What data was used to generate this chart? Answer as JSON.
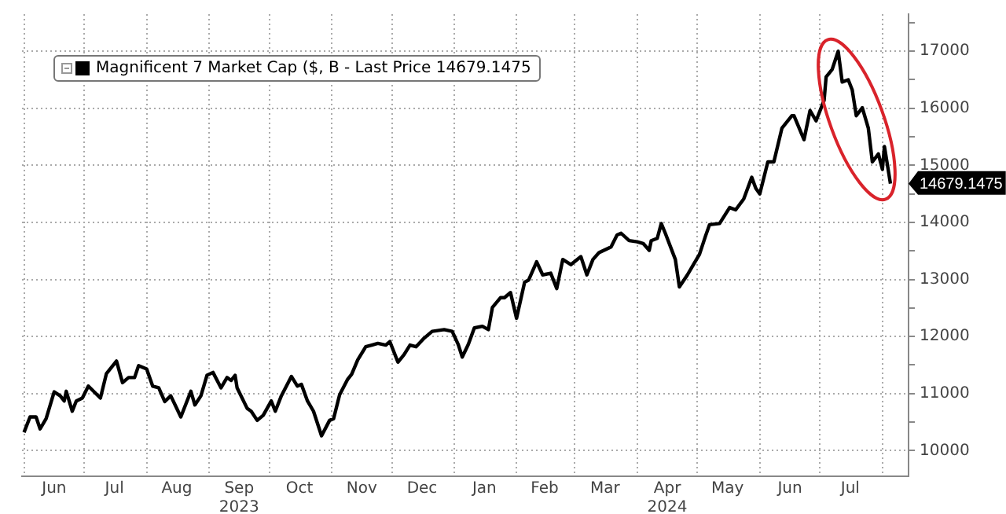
{
  "chart_data": {
    "type": "line",
    "legend": "top left",
    "grid": true,
    "marker": "none",
    "line_style": "solid",
    "series": [
      {
        "name": "Magnificent 7 Market Cap ($, B - Last Price 14679.1475",
        "color": "#000000",
        "x": [
          "2023-06-01",
          "2023-06-04",
          "2023-06-07",
          "2023-06-09",
          "2023-06-12",
          "2023-06-16",
          "2023-06-19",
          "2023-06-21",
          "2023-06-22",
          "2023-06-25",
          "2023-06-27",
          "2023-06-30",
          "2023-07-03",
          "2023-07-09",
          "2023-07-12",
          "2023-07-17",
          "2023-07-20",
          "2023-07-23",
          "2023-07-26",
          "2023-07-28",
          "2023-08-01",
          "2023-08-04",
          "2023-08-07",
          "2023-08-10",
          "2023-08-13",
          "2023-08-18",
          "2023-08-23",
          "2023-08-25",
          "2023-08-28",
          "2023-08-31",
          "2023-09-03",
          "2023-09-07",
          "2023-09-10",
          "2023-09-12",
          "2023-09-14",
          "2023-09-15",
          "2023-09-20",
          "2023-09-22",
          "2023-09-25",
          "2023-09-28",
          "2023-10-02",
          "2023-10-04",
          "2023-10-07",
          "2023-10-12",
          "2023-10-15",
          "2023-10-17",
          "2023-10-20",
          "2023-10-23",
          "2023-10-27",
          "2023-10-31",
          "2023-11-02",
          "2023-11-05",
          "2023-11-09",
          "2023-11-11",
          "2023-11-14",
          "2023-11-18",
          "2023-11-21",
          "2023-11-24",
          "2023-11-28",
          "2023-11-30",
          "2023-12-04",
          "2023-12-07",
          "2023-12-10",
          "2023-12-13",
          "2023-12-17",
          "2023-12-21",
          "2023-12-27",
          "2023-12-31",
          "2024-01-03",
          "2024-01-05",
          "2024-01-08",
          "2024-01-11",
          "2024-01-15",
          "2024-01-18",
          "2024-01-20",
          "2024-01-24",
          "2024-01-26",
          "2024-01-29",
          "2024-02-01",
          "2024-02-05",
          "2024-02-07",
          "2024-02-11",
          "2024-02-14",
          "2024-02-18",
          "2024-02-21",
          "2024-02-24",
          "2024-02-28",
          "2024-03-04",
          "2024-03-07",
          "2024-03-10",
          "2024-03-13",
          "2024-03-19",
          "2024-03-22",
          "2024-03-24",
          "2024-03-28",
          "2024-04-01",
          "2024-04-04",
          "2024-04-07",
          "2024-04-08",
          "2024-04-11",
          "2024-04-13",
          "2024-04-15",
          "2024-04-20",
          "2024-04-22",
          "2024-04-26",
          "2024-04-29",
          "2024-05-02",
          "2024-05-05",
          "2024-05-07",
          "2024-05-12",
          "2024-05-17",
          "2024-05-20",
          "2024-05-24",
          "2024-05-28",
          "2024-05-30",
          "2024-06-01",
          "2024-06-05",
          "2024-06-08",
          "2024-06-12",
          "2024-06-17",
          "2024-06-18",
          "2024-06-23",
          "2024-06-26",
          "2024-06-29",
          "2024-07-03",
          "2024-07-04",
          "2024-07-07",
          "2024-07-10",
          "2024-07-12",
          "2024-07-15",
          "2024-07-17",
          "2024-07-19",
          "2024-07-22",
          "2024-07-25",
          "2024-07-27",
          "2024-07-30",
          "2024-08-01",
          "2024-08-02",
          "2024-08-05"
        ],
        "values": [
          10320,
          10590,
          10590,
          10380,
          10560,
          11030,
          10960,
          10870,
          11040,
          10690,
          10870,
          10920,
          11130,
          10920,
          11350,
          11570,
          11190,
          11280,
          11280,
          11490,
          11430,
          11130,
          11100,
          10860,
          10960,
          10590,
          11040,
          10800,
          10960,
          11320,
          11370,
          11100,
          11280,
          11230,
          11320,
          11100,
          10740,
          10690,
          10530,
          10620,
          10870,
          10690,
          10960,
          11300,
          11130,
          11160,
          10870,
          10690,
          10260,
          10530,
          10560,
          10980,
          11250,
          11340,
          11590,
          11820,
          11850,
          11880,
          11850,
          11910,
          11550,
          11680,
          11850,
          11820,
          11970,
          12090,
          12120,
          12090,
          11860,
          11640,
          11860,
          12150,
          12180,
          12120,
          12510,
          12680,
          12680,
          12770,
          12320,
          12950,
          12990,
          13310,
          13080,
          13110,
          12840,
          13350,
          13260,
          13400,
          13080,
          13350,
          13470,
          13570,
          13780,
          13810,
          13680,
          13660,
          13630,
          13510,
          13680,
          13720,
          13980,
          13810,
          13350,
          12870,
          13080,
          13260,
          13440,
          13760,
          13960,
          13980,
          14260,
          14220,
          14410,
          14790,
          14600,
          14500,
          15060,
          15060,
          15650,
          15870,
          15870,
          15450,
          15960,
          15780,
          16140,
          16550,
          16680,
          17000,
          16460,
          16500,
          16320,
          15870,
          16010,
          15650,
          15060,
          15200,
          14930,
          15330,
          14679.1475
        ]
      }
    ],
    "xlim": [
      "2023-05-31",
      "2024-08-14"
    ],
    "xticks": [
      {
        "value": "2023-06-01",
        "label": null
      },
      {
        "value": "2023-06-16",
        "label": "Jun"
      },
      {
        "value": "2023-07-01",
        "label": null
      },
      {
        "value": "2023-07-16",
        "label": "Jul"
      },
      {
        "value": "2023-08-01",
        "label": null
      },
      {
        "value": "2023-08-16",
        "label": "Aug"
      },
      {
        "value": "2023-09-01",
        "label": null
      },
      {
        "value": "2023-09-16",
        "label": "Sep\n2023"
      },
      {
        "value": "2023-10-01",
        "label": null
      },
      {
        "value": "2023-10-16",
        "label": "Oct"
      },
      {
        "value": "2023-11-01",
        "label": null
      },
      {
        "value": "2023-11-16",
        "label": "Nov"
      },
      {
        "value": "2023-12-01",
        "label": null
      },
      {
        "value": "2023-12-16",
        "label": "Dec"
      },
      {
        "value": "2024-01-01",
        "label": null
      },
      {
        "value": "2024-01-16",
        "label": "Jan"
      },
      {
        "value": "2024-02-01",
        "label": null
      },
      {
        "value": "2024-02-15",
        "label": "Feb"
      },
      {
        "value": "2024-03-01",
        "label": null
      },
      {
        "value": "2024-03-16",
        "label": "Mar"
      },
      {
        "value": "2024-04-01",
        "label": null
      },
      {
        "value": "2024-04-16",
        "label": "Apr\n2024"
      },
      {
        "value": "2024-05-01",
        "label": null
      },
      {
        "value": "2024-05-16",
        "label": "May"
      },
      {
        "value": "2024-06-01",
        "label": null
      },
      {
        "value": "2024-06-16",
        "label": "Jun"
      },
      {
        "value": "2024-07-01",
        "label": null
      },
      {
        "value": "2024-07-16",
        "label": "Jul"
      },
      {
        "value": "2024-08-01",
        "label": null
      }
    ],
    "ylim": [
      9550,
      17650
    ],
    "yticks": [
      10000,
      {
        "value": 10500,
        "label": null
      },
      11000,
      {
        "value": 11500,
        "label": null
      },
      12000,
      {
        "value": 12500,
        "label": null
      },
      13000,
      {
        "value": 13500,
        "label": null
      },
      14000,
      {
        "value": 14500,
        "label": null
      },
      15000,
      {
        "value": 15500,
        "label": null
      },
      16000,
      {
        "value": 16500,
        "label": null
      },
      17000,
      {
        "value": 17500,
        "label": null
      }
    ],
    "annotations": [
      {
        "text": "14679.1475",
        "x": "2024-08-05",
        "y": 14679.1475
      }
    ]
  }
}
